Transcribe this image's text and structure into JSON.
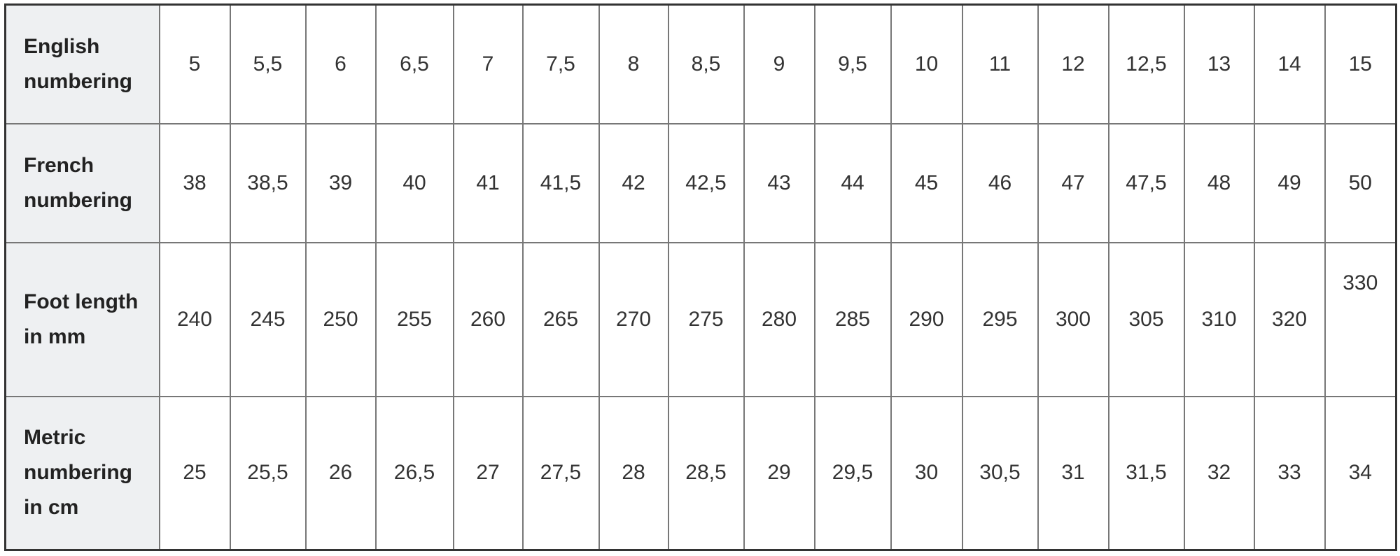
{
  "table": {
    "rows": [
      {
        "header": "English numbering",
        "cells": [
          "5",
          "5,5",
          "6",
          "6,5",
          "7",
          "7,5",
          "8",
          "8,5",
          "9",
          "9,5",
          "10",
          "11",
          "12",
          "12,5",
          "13",
          "14",
          "15"
        ]
      },
      {
        "header": "French numbering",
        "cells": [
          "38",
          "38,5",
          "39",
          "40",
          "41",
          "41,5",
          "42",
          "42,5",
          "43",
          "44",
          "45",
          "46",
          "47",
          "47,5",
          "48",
          "49",
          "50"
        ]
      },
      {
        "header": "Foot length in mm",
        "cells": [
          "240",
          "245",
          "250",
          "255",
          "260",
          "265",
          "270",
          "275",
          "280",
          "285",
          "290",
          "295",
          "300",
          "305",
          "310",
          "320",
          "330"
        ]
      },
      {
        "header": "Metric numbering in cm",
        "cells": [
          "25",
          "25,5",
          "26",
          "26,5",
          "27",
          "27,5",
          "28",
          "28,5",
          "29",
          "29,5",
          "30",
          "30,5",
          "31",
          "31,5",
          "32",
          "33",
          "34"
        ]
      }
    ],
    "colors": {
      "header_bg": "#eef0f2",
      "border": "#777777",
      "text": "#333333"
    }
  }
}
